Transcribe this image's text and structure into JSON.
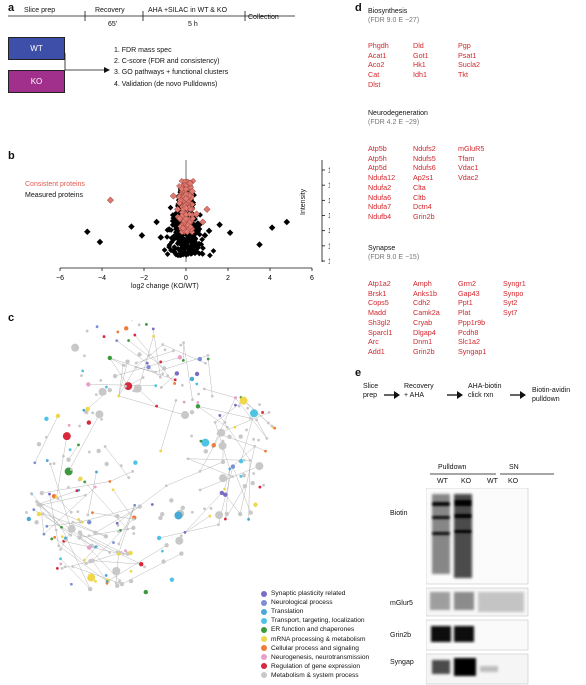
{
  "panel_a": {
    "label": "a",
    "timeline": [
      {
        "label": "Slice prep",
        "sub": ""
      },
      {
        "label": "Recovery",
        "sub": "65′"
      },
      {
        "label": "AHA +SILAC in WT & KO",
        "sub": "5 h"
      },
      {
        "label": "Collection",
        "sub": ""
      }
    ],
    "boxes": [
      {
        "label": "WT",
        "color": "#3d4fa8"
      },
      {
        "label": "KO",
        "color": "#a0308c"
      }
    ],
    "steps": [
      "1. FDR mass spec",
      "2. C-score (FDR and consistency)",
      "3. GO pathways + functional clusters",
      "4. Validation (de novo Pulldowns)"
    ]
  },
  "panel_b": {
    "label": "b",
    "legend_consistent": "Consistent proteins",
    "legend_measured": "Measured proteins",
    "xlabel": "log2 change (KO/WT)",
    "ylabel": "Intensity",
    "xticks": [
      "−6",
      "−4",
      "−2",
      "0",
      "2",
      "4",
      "6"
    ],
    "yticks": [
      "1E+12",
      "1E+11",
      "1E+10",
      "1E+9",
      "1E+8",
      "1E+7",
      "1E+6"
    ],
    "colors": {
      "consistent": "#e07a70",
      "measured": "#000000"
    }
  },
  "chart_data": {
    "type": "scatter",
    "xlabel": "log2 change (KO/WT)",
    "ylabel": "Intensity",
    "xlim": [
      -6,
      6
    ],
    "ylim": [
      "1E+6",
      "1E+12"
    ],
    "yscale": "log",
    "grid": false,
    "legend_placement": "top-left",
    "series": [
      {
        "name": "Consistent proteins",
        "points": [
          [
            -3.6,
            "8E+9"
          ],
          [
            -0.6,
            "1.5E+10"
          ],
          [
            0.2,
            "1E+11"
          ],
          [
            0.3,
            "3E+10"
          ],
          [
            1.0,
            "2E+9"
          ],
          [
            0.5,
            "1E+9"
          ],
          [
            -0.3,
            "5E+8"
          ],
          [
            0.8,
            "3E+8"
          ],
          [
            0.0,
            "1E+10"
          ],
          [
            -0.4,
            "2E+9"
          ]
        ]
      },
      {
        "name": "Measured proteins",
        "points": [
          [
            -4.7,
            "7E+7"
          ],
          [
            -4.1,
            "1.5E+7"
          ],
          [
            -2.6,
            "1.5E+8"
          ],
          [
            -2.1,
            "4E+7"
          ],
          [
            2.1,
            "6E+7"
          ],
          [
            3.5,
            "1E+7"
          ],
          [
            4.1,
            "1.3E+8"
          ],
          [
            4.8,
            "3E+8"
          ],
          [
            -1.4,
            "3E+8"
          ],
          [
            1.6,
            "2E+8"
          ],
          [
            0.2,
            "6E+6"
          ],
          [
            -0.8,
            "1E+8"
          ],
          [
            1.1,
            "8E+7"
          ],
          [
            0.0,
            "2E+7"
          ],
          [
            -1.2,
            "3E+7"
          ],
          [
            0.9,
            "4E+7"
          ]
        ]
      }
    ]
  },
  "panel_c": {
    "label": "c",
    "legend": [
      {
        "label": "Synaptic plasticity related",
        "color": "#7c6cc4"
      },
      {
        "label": "Neurological process",
        "color": "#7e8fd4"
      },
      {
        "label": "Translation",
        "color": "#49a8d6"
      },
      {
        "label": "Transport, targeting, localization",
        "color": "#4fc3e6"
      },
      {
        "label": "ER function and chaperones",
        "color": "#3c9a3c"
      },
      {
        "label": "mRNA processing & metabolism",
        "color": "#f0d64a"
      },
      {
        "label": "Cellular process and signaling",
        "color": "#f07c3c"
      },
      {
        "label": "Neurogenesis, neurotransmission",
        "color": "#e9a0c8"
      },
      {
        "label": "Regulation of gene expression",
        "color": "#d8283c"
      },
      {
        "label": "Metabolism & system process",
        "color": "#c8c8c8"
      }
    ]
  },
  "panel_d": {
    "label": "d",
    "groups": [
      {
        "title": "Biosynthesis",
        "fdr": "(FDR 9.0 E −27)",
        "cols": [
          [
            "Phgdh",
            "Acat1",
            "Aco2",
            "Cat",
            "Dlst"
          ],
          [
            "Dld",
            "Got1",
            "Hk1",
            "Idh1"
          ],
          [
            "Pgp",
            "Psat1",
            "Sucla2",
            "Tkt"
          ]
        ]
      },
      {
        "title": "Neurodegeneration",
        "fdr": "(FDR 4.2 E −29)",
        "cols": [
          [
            "Atp5b",
            "Atp5h",
            "Atp5d",
            "Ndufa12",
            "Ndufa2",
            "Ndufa6",
            "Ndufa7",
            "Ndufb4"
          ],
          [
            "Ndufs2",
            "Ndufs5",
            "Ndufs6",
            "Ap2s1",
            "Clta",
            "Cltb",
            "Dctn4",
            "Grin2b"
          ],
          [
            "mGluR5",
            "Tfam",
            "Vdac1",
            "Vdac2"
          ]
        ]
      },
      {
        "title": "Synapse",
        "fdr": "(FDR 9.0 E −15)",
        "cols": [
          [
            "Atp1a2",
            "Brsk1",
            "Cops5",
            "Madd",
            "Sh3gl2",
            "Sparcl1",
            "Arc",
            "Add1"
          ],
          [
            "Amph",
            "Anks1b",
            "Cdh2",
            "Camk2a",
            "Cryab",
            "Dlgap4",
            "Dnm1",
            "Grin2b"
          ],
          [
            "Grm2",
            "Gap43",
            "Ppt1",
            "Plat",
            "Ppp1r9b",
            "Pcdh8",
            "Slc1a2",
            "Syngap1"
          ],
          [
            "Syngr1",
            "Synpo",
            "Syt2",
            "Syt7"
          ]
        ]
      }
    ]
  },
  "panel_e": {
    "label": "e",
    "flow": [
      "Slice\nprep",
      "Recovery\n+ AHA",
      "AHA-biotin\nclick rxn",
      "Biotin-avidin\npulldown"
    ],
    "headers": {
      "pulldown": "Pulldown",
      "sn": "SN"
    },
    "lanes": [
      "WT",
      "KO",
      "WT",
      "KO"
    ],
    "rows": [
      "Biotin",
      "mGlur5",
      "Grin2b",
      "Syngap"
    ]
  }
}
